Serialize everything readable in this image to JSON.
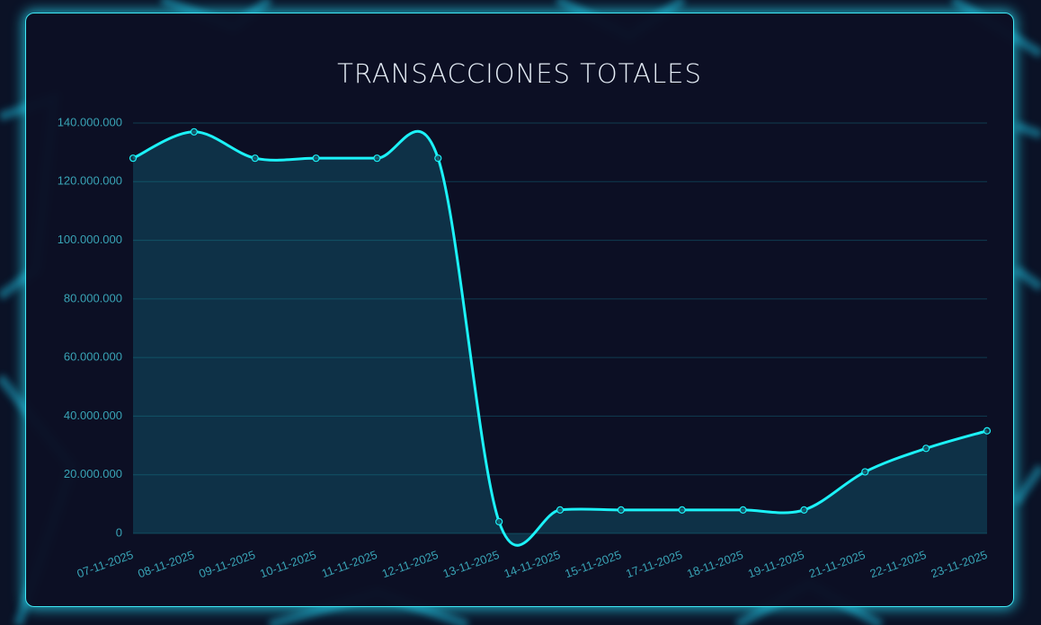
{
  "chart_data": {
    "type": "line",
    "title": "TRANSACCIONES TOTALES",
    "categories": [
      "07-11-2025",
      "08-11-2025",
      "09-11-2025",
      "10-11-2025",
      "11-11-2025",
      "12-11-2025",
      "13-11-2025",
      "14-11-2025",
      "15-11-2025",
      "17-11-2025",
      "18-11-2025",
      "19-11-2025",
      "21-11-2025",
      "22-11-2025",
      "23-11-2025"
    ],
    "values": [
      128000000,
      137000000,
      128000000,
      128000000,
      128000000,
      128000000,
      4000000,
      8000000,
      8000000,
      8000000,
      8000000,
      8000000,
      21000000,
      29000000,
      35000000
    ],
    "color": "#1cf2f8",
    "fill": true,
    "grid": true,
    "ylim": [
      0,
      140000000
    ],
    "yticks": [
      {
        "value": 0,
        "label": "0"
      },
      {
        "value": 20000000,
        "label": "20.000.000"
      },
      {
        "value": 40000000,
        "label": "40.000.000"
      },
      {
        "value": 60000000,
        "label": "60.000.000"
      },
      {
        "value": 80000000,
        "label": "80.000.000"
      },
      {
        "value": 100000000,
        "label": "100.000.000"
      },
      {
        "value": 120000000,
        "label": "120.000.000"
      },
      {
        "value": 140000000,
        "label": "140.000.000"
      }
    ]
  }
}
